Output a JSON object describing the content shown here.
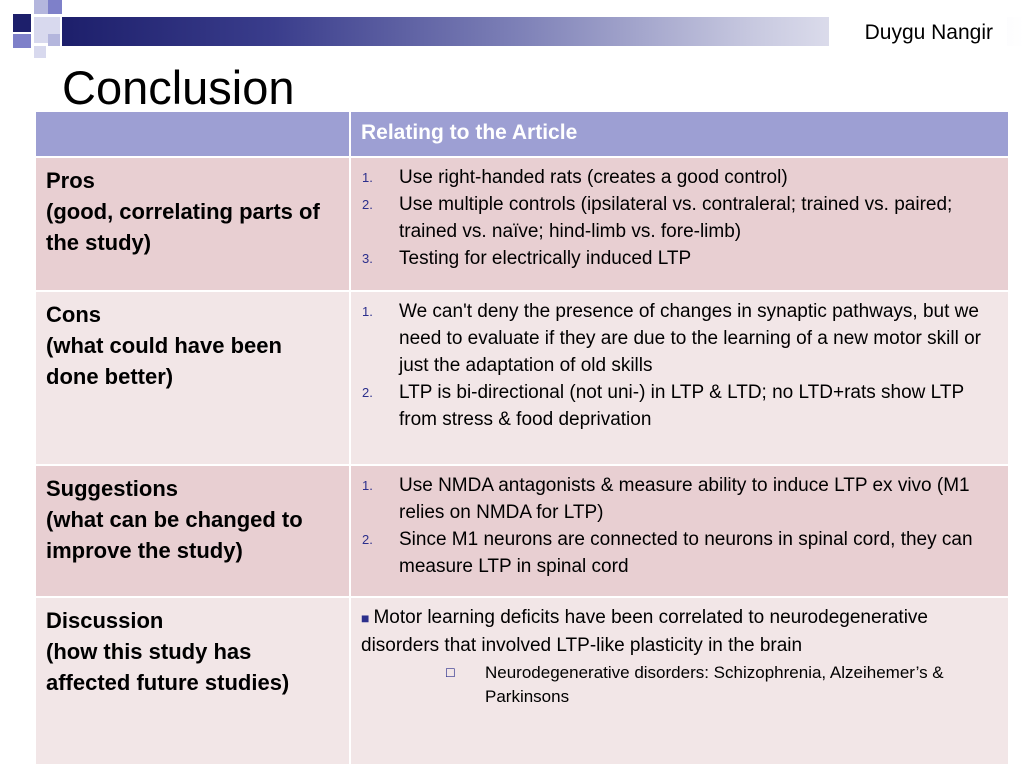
{
  "header": {
    "author": "Duygu Nangir",
    "title": "Conclusion"
  },
  "table": {
    "column_headers": [
      "",
      "Relating to the Article"
    ],
    "rows": [
      {
        "heading": "Pros",
        "subheading": "(good, correlating parts of the study)",
        "items": [
          {
            "marker": "1.",
            "text": "Use right-handed rats (creates a good control)"
          },
          {
            "marker": "2.",
            "text": "Use multiple controls (ipsilateral vs. contraleral; trained vs. paired; trained vs. naïve; hind-limb vs. fore-limb)"
          },
          {
            "marker": "3.",
            "text": "Testing for electrically induced LTP"
          }
        ]
      },
      {
        "heading": "Cons",
        "subheading": "(what could have been done better)",
        "items": [
          {
            "marker": "1.",
            "text": "We can't deny the presence of changes in synaptic pathways, but we need to evaluate if they are due to the learning of a new motor skill or just the adaptation of old skills"
          },
          {
            "marker": "2.",
            "text": "LTP is bi-directional (not uni-) in LTP & LTD; no LTD+rats show LTP from stress & food deprivation"
          }
        ]
      },
      {
        "heading": "Suggestions",
        "subheading": "(what can be changed to improve the study)",
        "items": [
          {
            "marker": "1.",
            "text": "Use NMDA antagonists & measure ability to induce LTP ex vivo (M1 relies on NMDA for LTP)"
          },
          {
            "marker": "2.",
            "text": "Since M1 neurons are connected to neurons in spinal cord, they can measure LTP in spinal cord"
          }
        ]
      },
      {
        "heading": "Discussion",
        "subheading": "(how this study has affected future studies)",
        "bullet_text": "Motor learning deficits have been correlated to neurodegenerative disorders that involved LTP-like plasticity in the brain",
        "sub_bullet_text": "Neurodegenerative disorders: Schizophrenia, Alzeihemer’s & Parkinsons"
      }
    ]
  },
  "colors": {
    "header_fill": "#9d9fd3",
    "row_dark": "#e8cfd2",
    "row_light": "#f2e6e7",
    "marker": "#2c2f8c"
  },
  "icons": {
    "row_bullet": "square-bullet-icon",
    "sub_bullet": "hollow-square-bullet-icon"
  }
}
